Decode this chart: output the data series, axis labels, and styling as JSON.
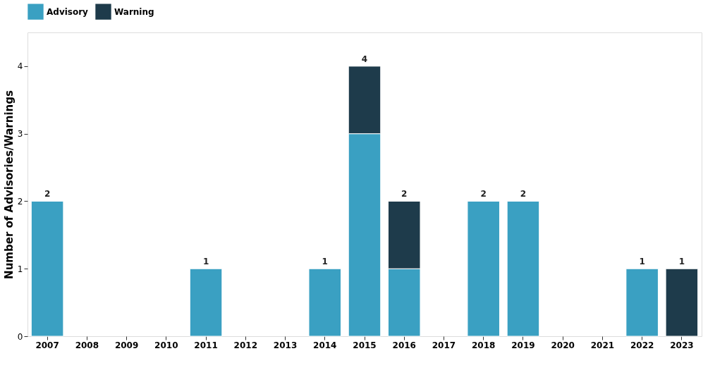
{
  "chart_data": {
    "type": "bar",
    "stacked": true,
    "ylabel": "Number of Advisories/Warnings",
    "categories": [
      "2007",
      "2008",
      "2009",
      "2010",
      "2011",
      "2012",
      "2013",
      "2014",
      "2015",
      "2016",
      "2017",
      "2018",
      "2019",
      "2020",
      "2021",
      "2022",
      "2023"
    ],
    "series": [
      {
        "name": "Advisory",
        "color": "#3aa0c2",
        "values": [
          2,
          null,
          null,
          null,
          1,
          null,
          null,
          1,
          3,
          1,
          null,
          2,
          2,
          null,
          null,
          1,
          null
        ]
      },
      {
        "name": "Warning",
        "color": "#1e3b4b",
        "values": [
          null,
          null,
          null,
          null,
          null,
          null,
          null,
          null,
          1,
          1,
          null,
          null,
          null,
          null,
          null,
          null,
          1
        ]
      }
    ],
    "totals": [
      "2",
      null,
      null,
      null,
      "1",
      null,
      null,
      "1",
      "4",
      "2",
      null,
      "2",
      "2",
      null,
      null,
      "1",
      "1"
    ],
    "ylim": [
      0,
      4.5
    ],
    "yticks": [
      0,
      1,
      2,
      3,
      4
    ],
    "grid": false,
    "legend": "top"
  }
}
